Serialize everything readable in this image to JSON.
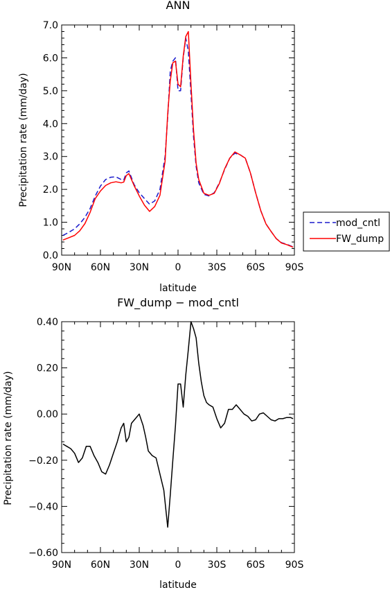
{
  "chart_data": [
    {
      "type": "line",
      "title": "ANN",
      "xlabel": "latitude",
      "ylabel": "Precipitation rate (mm/day)",
      "xlim": [
        90,
        -90
      ],
      "ylim": [
        0,
        7
      ],
      "x_ticks": [
        90,
        60,
        30,
        0,
        -30,
        -60,
        -90
      ],
      "x_tick_labels": [
        "90N",
        "60N",
        "30N",
        "0",
        "30S",
        "60S",
        "90S"
      ],
      "y_ticks": [
        0,
        1,
        2,
        3,
        4,
        5,
        6,
        7
      ],
      "y_tick_labels": [
        "0.0",
        "1.0",
        "2.0",
        "3.0",
        "4.0",
        "5.0",
        "6.0",
        "7.0"
      ],
      "legend_position": "outside-right",
      "x": [
        89,
        85,
        80,
        76,
        72,
        68,
        64,
        60,
        56,
        52,
        48,
        44,
        42,
        40,
        38,
        34,
        30,
        26,
        22,
        18,
        14,
        10,
        8,
        6,
        4,
        2,
        0,
        -2,
        -4,
        -6,
        -8,
        -10,
        -12,
        -14,
        -16,
        -20,
        -24,
        -28,
        -32,
        -36,
        -40,
        -44,
        -48,
        -52,
        -56,
        -60,
        -64,
        -68,
        -72,
        -76,
        -80,
        -84,
        -89
      ],
      "series": [
        {
          "name": "mod_cntl",
          "color": "#1a1acc",
          "dash": "dashed",
          "values": [
            0.6,
            0.68,
            0.8,
            0.95,
            1.15,
            1.42,
            1.8,
            2.1,
            2.3,
            2.37,
            2.38,
            2.3,
            2.28,
            2.5,
            2.56,
            2.15,
            1.9,
            1.72,
            1.55,
            1.65,
            2.0,
            3.0,
            4.2,
            5.6,
            5.9,
            6.0,
            5.0,
            5.0,
            6.0,
            6.6,
            6.2,
            4.9,
            3.6,
            2.7,
            2.2,
            1.85,
            1.8,
            1.9,
            2.2,
            2.6,
            2.95,
            3.1,
            3.05,
            2.95,
            2.5,
            1.9,
            1.35,
            0.95,
            0.72,
            0.5,
            0.38,
            0.33,
            0.25
          ]
        },
        {
          "name": "FW_dump",
          "color": "#ff0000",
          "dash": "solid",
          "values": [
            0.46,
            0.52,
            0.6,
            0.74,
            0.96,
            1.3,
            1.72,
            1.95,
            2.12,
            2.2,
            2.23,
            2.2,
            2.22,
            2.42,
            2.48,
            2.12,
            1.8,
            1.52,
            1.33,
            1.48,
            1.82,
            2.85,
            4.3,
            5.3,
            5.85,
            5.9,
            5.2,
            5.12,
            6.05,
            6.65,
            6.8,
            5.2,
            3.8,
            2.8,
            2.3,
            1.88,
            1.82,
            1.88,
            2.18,
            2.62,
            2.95,
            3.14,
            3.05,
            2.95,
            2.5,
            1.9,
            1.35,
            0.95,
            0.72,
            0.5,
            0.37,
            0.32,
            0.24
          ]
        }
      ]
    },
    {
      "type": "line",
      "title": "FW_dump − mod_cntl",
      "xlabel": "latitude",
      "ylabel": "Precipitation rate (mm/day)",
      "xlim": [
        90,
        -90
      ],
      "ylim": [
        -0.6,
        0.4
      ],
      "x_ticks": [
        90,
        60,
        30,
        0,
        -30,
        -60,
        -90
      ],
      "x_tick_labels": [
        "90N",
        "60N",
        "30N",
        "0",
        "30S",
        "60S",
        "90S"
      ],
      "y_ticks": [
        -0.6,
        -0.4,
        -0.2,
        0.0,
        0.2,
        0.4
      ],
      "y_tick_labels": [
        "−0.60",
        "−0.40",
        "−0.20",
        "0.00",
        "0.20",
        "0.40"
      ],
      "x": [
        89,
        86,
        83,
        80,
        77,
        74,
        71,
        68,
        65,
        62,
        59,
        56,
        53,
        50,
        47,
        44,
        42,
        40,
        38,
        36,
        33,
        30,
        27,
        25,
        23,
        20,
        17,
        14,
        11,
        8,
        6,
        4,
        2,
        0,
        -2,
        -4,
        -6,
        -8,
        -10,
        -12,
        -14,
        -16,
        -18,
        -20,
        -22,
        -24,
        -27,
        -30,
        -33,
        -36,
        -39,
        -42,
        -45,
        -48,
        -51,
        -54,
        -57,
        -60,
        -63,
        -66,
        -69,
        -72,
        -75,
        -78,
        -81,
        -84,
        -87,
        -89
      ],
      "series": [
        {
          "name": "",
          "color": "#000000",
          "values": [
            -0.13,
            -0.14,
            -0.15,
            -0.17,
            -0.21,
            -0.19,
            -0.14,
            -0.14,
            -0.18,
            -0.21,
            -0.25,
            -0.26,
            -0.22,
            -0.17,
            -0.12,
            -0.06,
            -0.04,
            -0.12,
            -0.1,
            -0.04,
            -0.02,
            0.0,
            -0.05,
            -0.1,
            -0.16,
            -0.18,
            -0.19,
            -0.26,
            -0.33,
            -0.49,
            -0.35,
            -0.2,
            -0.05,
            0.13,
            0.13,
            0.03,
            0.17,
            0.28,
            0.4,
            0.37,
            0.33,
            0.22,
            0.14,
            0.08,
            0.05,
            0.04,
            0.03,
            -0.02,
            -0.06,
            -0.04,
            0.02,
            0.02,
            0.04,
            0.02,
            0.0,
            -0.01,
            -0.03,
            -0.025,
            0.0,
            0.005,
            -0.01,
            -0.025,
            -0.03,
            -0.02,
            -0.02,
            -0.015,
            -0.015,
            -0.02
          ]
        }
      ]
    }
  ]
}
